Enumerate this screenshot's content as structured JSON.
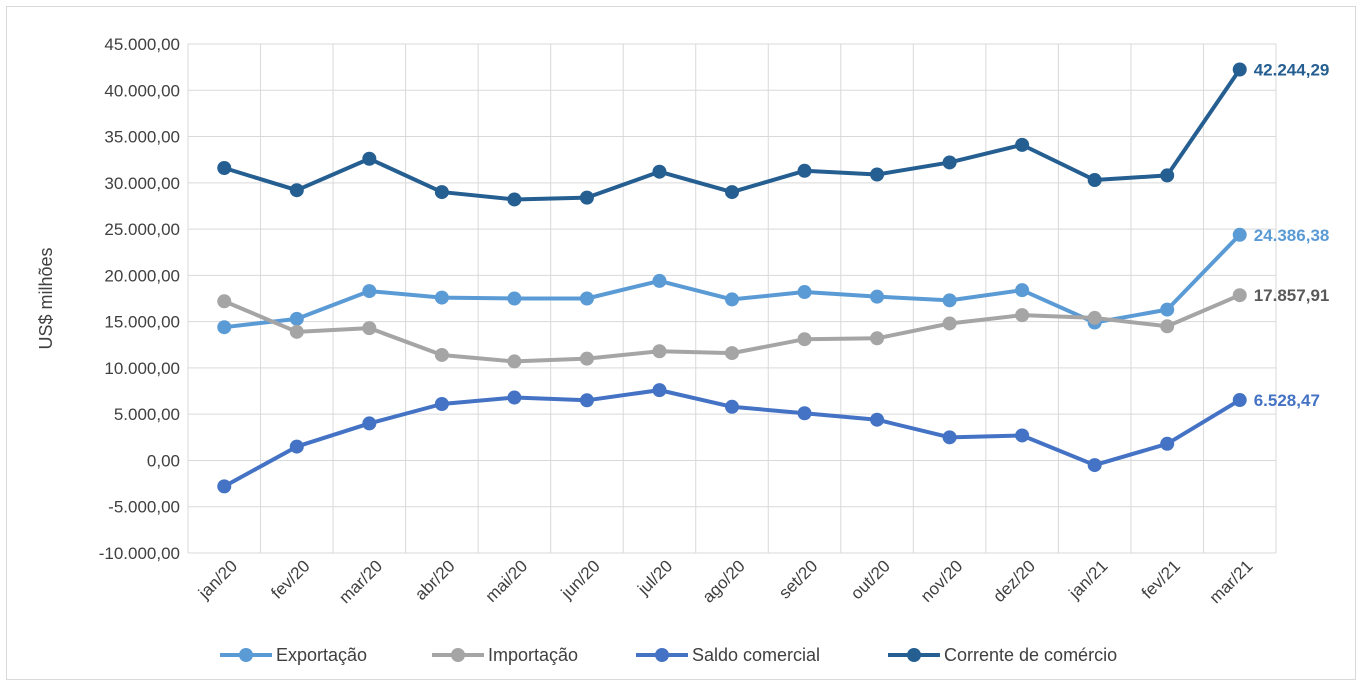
{
  "chart_data": {
    "type": "line",
    "title": "",
    "xlabel": "",
    "ylabel": "US$ milhões",
    "ylim": [
      -10000,
      45000
    ],
    "ytick_step": 5000,
    "yticks": [
      "45.000,00",
      "40.000,00",
      "35.000,00",
      "30.000,00",
      "25.000,00",
      "20.000,00",
      "15.000,00",
      "10.000,00",
      "5.000,00",
      "0,00",
      "-5.000,00",
      "-10.000,00"
    ],
    "categories": [
      "jan/20",
      "fev/20",
      "mar/20",
      "abr/20",
      "mai/20",
      "jun/20",
      "jul/20",
      "ago/20",
      "set/20",
      "out/20",
      "nov/20",
      "dez/20",
      "jan/21",
      "fev/21",
      "mar/21"
    ],
    "grid": true,
    "legend_position": "bottom",
    "series": [
      {
        "name": "Exportação",
        "color": "#5b9bd5",
        "values": [
          14400,
          15300,
          18300,
          17600,
          17500,
          17500,
          19400,
          17400,
          18200,
          17700,
          17300,
          18400,
          14900,
          16300,
          24386.38
        ],
        "end_label": "24.386,38"
      },
      {
        "name": "Importação",
        "color": "#a5a5a5",
        "values": [
          17200,
          13900,
          14300,
          11400,
          10700,
          11000,
          11800,
          11600,
          13100,
          13200,
          14800,
          15700,
          15400,
          14500,
          17857.91
        ],
        "end_label": "17.857,91"
      },
      {
        "name": "Saldo comercial",
        "color": "#4472c4",
        "values": [
          -2800,
          1500,
          4000,
          6100,
          6800,
          6500,
          7600,
          5800,
          5100,
          4400,
          2500,
          2700,
          -500,
          1800,
          6528.47
        ],
        "end_label": "6.528,47"
      },
      {
        "name": "Corrente de comércio",
        "color": "#255e91",
        "values": [
          31600,
          29200,
          32600,
          29000,
          28200,
          28400,
          31200,
          29000,
          31300,
          30900,
          32200,
          34100,
          30300,
          30800,
          42244.29
        ],
        "end_label": "42.244,29"
      }
    ]
  }
}
